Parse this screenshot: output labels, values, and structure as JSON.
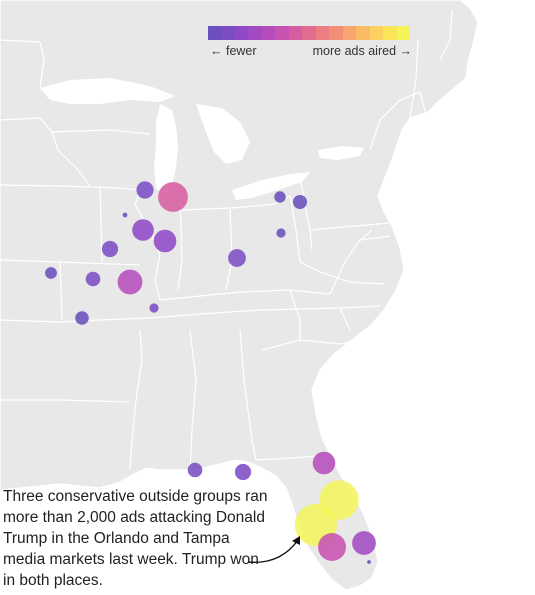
{
  "legend": {
    "fewer_label": "← fewer",
    "more_label": "more ads aired →",
    "colors": [
      "#6a4fbd",
      "#7c4cc4",
      "#8f49c6",
      "#a14ac3",
      "#b54dbc",
      "#c752b0",
      "#d65ea0",
      "#e26c90",
      "#ec7d82",
      "#f48f77",
      "#f8a46e",
      "#fbba66",
      "#fcd05f",
      "#f9e45a",
      "#f3f458"
    ]
  },
  "annotation": {
    "text": "Three conservative outside groups ran more than 2,000 ads attacking Donald Trump in the Orlando and Tampa media markets last week. Trump won in both places."
  },
  "markets": [
    {
      "intensity": 0.05,
      "size": 0.32
    },
    {
      "intensity": 0.45,
      "size": 0.55
    },
    {
      "intensity": 0.0,
      "size": 0.09
    },
    {
      "intensity": 0.12,
      "size": 0.4
    },
    {
      "intensity": 0.12,
      "size": 0.42
    },
    {
      "intensity": 0.05,
      "size": 0.3
    },
    {
      "intensity": 0.0,
      "size": 0.22
    },
    {
      "intensity": 0.05,
      "size": 0.27
    },
    {
      "intensity": 0.32,
      "size": 0.46
    },
    {
      "intensity": 0.0,
      "size": 0.25
    },
    {
      "intensity": 0.05,
      "size": 0.17
    },
    {
      "intensity": 0.05,
      "size": 0.33
    },
    {
      "intensity": 0.0,
      "size": 0.21
    },
    {
      "intensity": 0.0,
      "size": 0.26
    },
    {
      "intensity": 0.0,
      "size": 0.17
    },
    {
      "intensity": 0.05,
      "size": 0.27
    },
    {
      "intensity": 0.05,
      "size": 0.3
    },
    {
      "intensity": 0.28,
      "size": 0.42
    },
    {
      "intensity": 1.0,
      "size": 0.73
    },
    {
      "intensity": 1.0,
      "size": 0.78
    },
    {
      "intensity": 0.38,
      "size": 0.52
    },
    {
      "intensity": 0.22,
      "size": 0.44
    },
    {
      "intensity": 0.0,
      "size": 0.07
    }
  ]
}
